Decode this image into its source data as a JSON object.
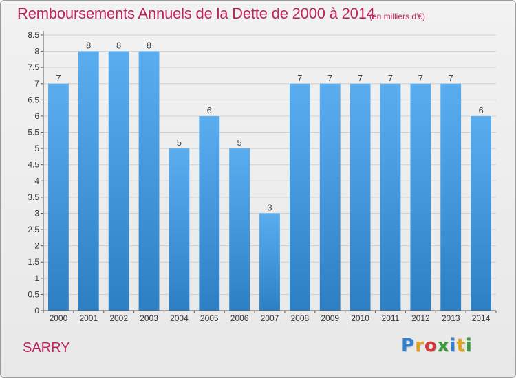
{
  "header": {
    "title": "Remboursements Annuels de la Dette de 2000 à 2014",
    "unit": "(en milliers d'€)"
  },
  "footer": {
    "city": "SARRY",
    "brand_letters": [
      {
        "ch": "P",
        "color": "#2f7fd3"
      },
      {
        "ch": "r",
        "color": "#e0a21a"
      },
      {
        "ch": "o",
        "color": "#d13a3a"
      },
      {
        "ch": "x",
        "color": "#3a9a3a"
      },
      {
        "ch": "i",
        "color": "#2f7fd3"
      },
      {
        "ch": "t",
        "color": "#e0a21a"
      },
      {
        "ch": "i",
        "color": "#3a9a3a"
      }
    ]
  },
  "colors": {
    "bar_top": "#5aaef0",
    "bar_bottom": "#2d7fc4",
    "axis_text": "#333333",
    "grid": "#cfcfcf"
  },
  "chart_data": {
    "type": "bar",
    "categories": [
      "2000",
      "2001",
      "2002",
      "2003",
      "2004",
      "2005",
      "2006",
      "2007",
      "2008",
      "2009",
      "2010",
      "2011",
      "2012",
      "2013",
      "2014"
    ],
    "values": [
      7,
      8,
      8,
      8,
      5,
      6,
      5,
      3,
      7,
      7,
      7,
      7,
      7,
      7,
      6
    ],
    "data_labels": [
      "7",
      "8",
      "8",
      "8",
      "5",
      "6",
      "5",
      "3",
      "7",
      "7",
      "7",
      "7",
      "7",
      "7",
      "6"
    ],
    "y_ticks": [
      "0",
      "0.5",
      "1",
      "1.5",
      "2",
      "2.5",
      "3",
      "3.5",
      "4",
      "4.5",
      "5",
      "5.5",
      "6",
      "6.5",
      "7",
      "7.5",
      "8",
      "8.5"
    ],
    "ylim": [
      0,
      8.5
    ],
    "grid": true,
    "xlabel": "",
    "ylabel": ""
  }
}
